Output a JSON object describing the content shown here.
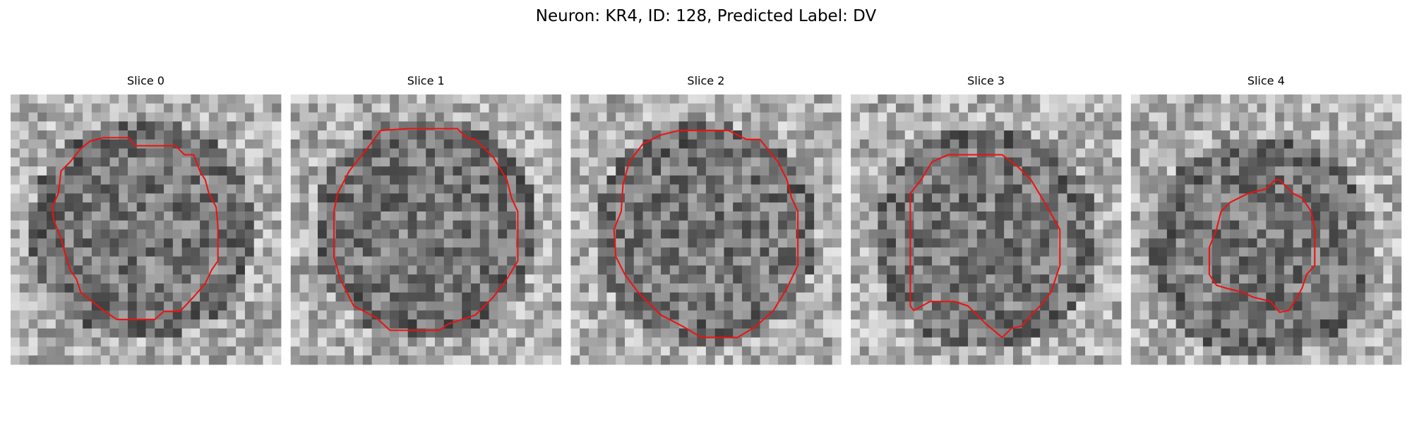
{
  "title": "Neuron: KR4, ID: 128, Predicted Label: DV",
  "panels": [
    {
      "title": "Slice 0"
    },
    {
      "title": "Slice 1"
    },
    {
      "title": "Slice 2"
    },
    {
      "title": "Slice 3"
    },
    {
      "title": "Slice 4"
    }
  ]
}
